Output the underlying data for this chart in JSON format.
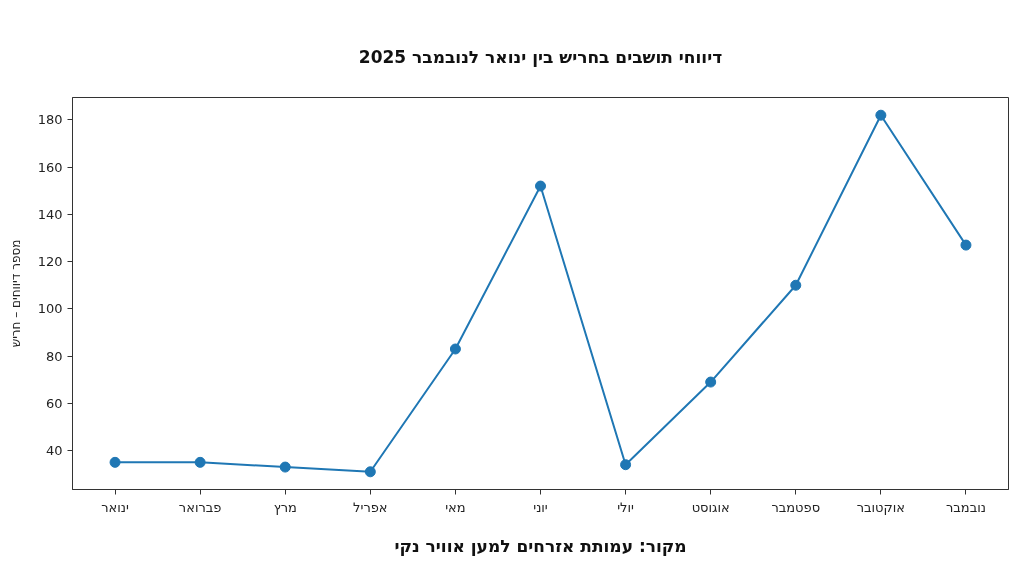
{
  "chart_data": {
    "type": "line",
    "title": "דיווחי תושבים בחריש בין ינואר לנובמבר 2025",
    "ylabel": "מספר דיווחים – חריש",
    "annotations": [
      "מקור: עמותת אזרחים למען אוויר נקי"
    ],
    "categories": [
      "ינואר",
      "פברואר",
      "מרץ",
      "אפריל",
      "מאי",
      "יוני",
      "יולי",
      "אוגוסט",
      "ספטמבר",
      "אוקטובר",
      "נובמבר"
    ],
    "series": [
      {
        "color": "#1f77b4",
        "values": [
          35,
          35,
          33,
          31,
          83,
          152,
          34,
          69,
          110,
          182,
          127
        ]
      }
    ],
    "ylim": [
      23.5,
      189.5
    ],
    "yticks": [
      40,
      60,
      80,
      100,
      120,
      140,
      160,
      180
    ],
    "grid": false,
    "marker": "circle",
    "line_style": "solid"
  }
}
